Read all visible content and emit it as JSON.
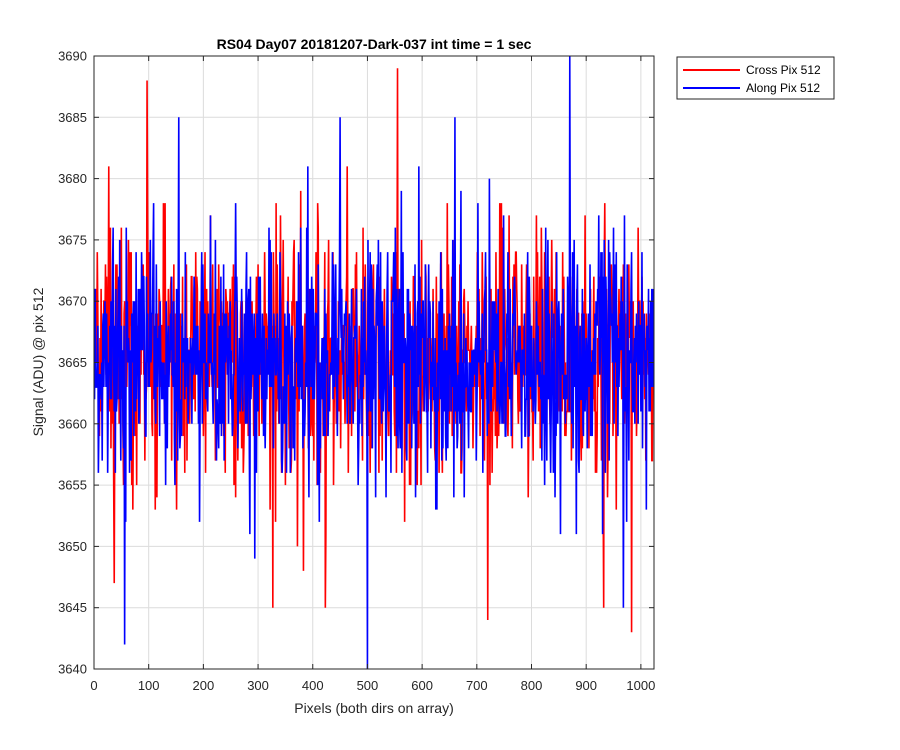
{
  "chart_data": {
    "type": "line",
    "title": "RS04 Day07 20181207-Dark-037 int time = 1 sec",
    "xlabel": "Pixels (both dirs on array)",
    "ylabel": "Signal (ADU) @ pix 512",
    "xlim": [
      0,
      1024
    ],
    "ylim": [
      3640,
      3690
    ],
    "xticks": [
      0,
      100,
      200,
      300,
      400,
      500,
      600,
      700,
      800,
      900,
      1000
    ],
    "yticks": [
      3640,
      3645,
      3650,
      3655,
      3660,
      3665,
      3670,
      3675,
      3680,
      3685,
      3690
    ],
    "grid": true,
    "legend_location": "outside-top-right",
    "series": [
      {
        "name": "Cross Pix 512",
        "color": "#ff0000",
        "summary": {
          "n_points": 1024,
          "mean": 3665.5,
          "approx_std": 5,
          "min": 3643,
          "max": 3689
        },
        "notable_points": [
          {
            "x": 97,
            "y": 3688
          },
          {
            "x": 555,
            "y": 3689
          },
          {
            "x": 983,
            "y": 3643
          },
          {
            "x": 720,
            "y": 3644
          },
          {
            "x": 423,
            "y": 3645
          },
          {
            "x": 327,
            "y": 3645
          },
          {
            "x": 932,
            "y": 3645
          },
          {
            "x": 37,
            "y": 3647
          }
        ]
      },
      {
        "name": "Along Pix 512",
        "color": "#0000ff",
        "summary": {
          "n_points": 1024,
          "mean": 3665.3,
          "approx_std": 5,
          "min": 3640,
          "max": 3690
        },
        "notable_points": [
          {
            "x": 870,
            "y": 3690
          },
          {
            "x": 500,
            "y": 3640
          },
          {
            "x": 56,
            "y": 3642
          },
          {
            "x": 155,
            "y": 3685
          },
          {
            "x": 450,
            "y": 3685
          },
          {
            "x": 660,
            "y": 3685
          },
          {
            "x": 968,
            "y": 3645
          }
        ]
      }
    ]
  }
}
